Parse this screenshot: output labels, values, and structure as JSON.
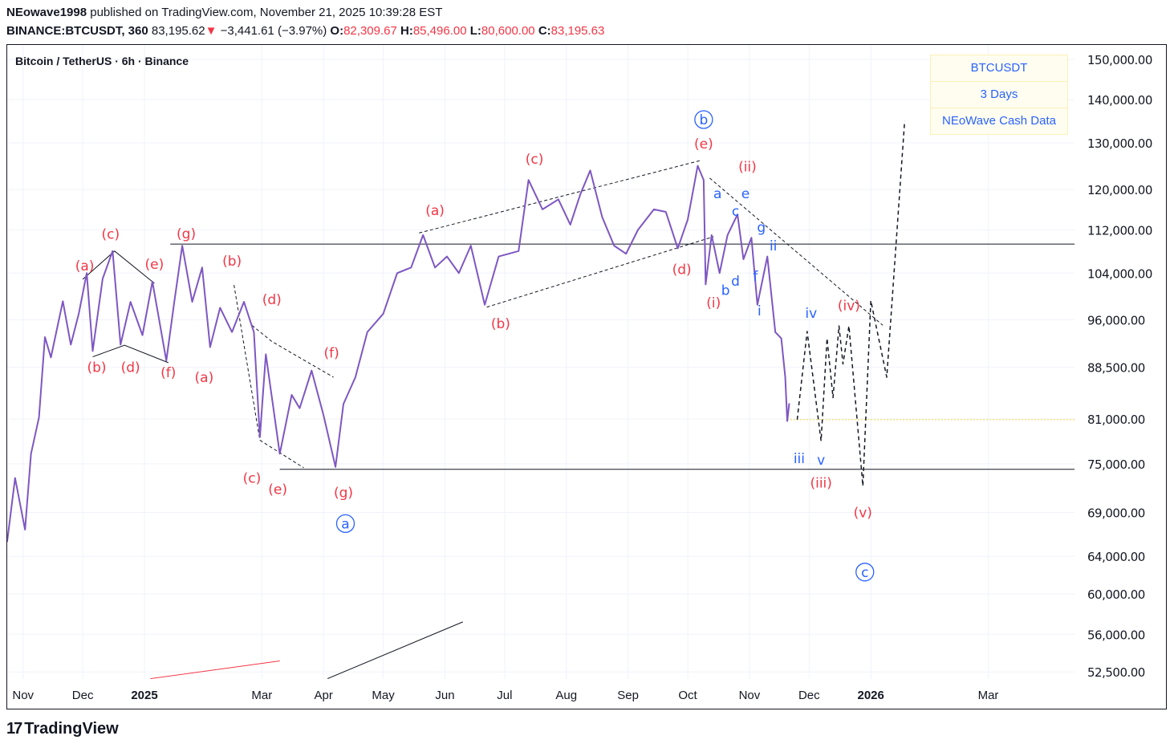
{
  "header": {
    "author": "NEowave1998",
    "published": "published on TradingView.com, November 21, 2025 10:39:28 EST",
    "symbol": "BINANCE:BTCUSDT, 360",
    "last": "83,195.62",
    "change": "−3,441.61 (−3.97%)",
    "o_label": "O:",
    "o": "82,309.67",
    "h_label": "H:",
    "h": "85,496.00",
    "l_label": "L:",
    "l": "80,600.00",
    "c_label": "C:",
    "c": "83,195.63"
  },
  "chart_title": "Bitcoin / TetherUS · 6h · Binance",
  "info_box": [
    "BTCUSDT",
    "3 Days",
    "NEoWave Cash Data"
  ],
  "footer": {
    "brand": "TradingView"
  },
  "colors": {
    "price": "#7e57c2",
    "wave_red": "#f23645",
    "wave_blue": "#2962ff",
    "down": "#f23645",
    "projection": "#131722",
    "level_dotted": "#f5d742"
  },
  "chart_data": {
    "type": "line",
    "title": "Bitcoin / TetherUS · 6h · Binance",
    "y_scale": "log",
    "ylim": [
      51000,
      152000
    ],
    "grid": true,
    "y_ticks": [
      150000,
      140000,
      130000,
      120000,
      112000,
      104000,
      96000,
      88500,
      81000,
      75000,
      69000,
      64000,
      60000,
      56000,
      52500
    ],
    "y_tick_labels": [
      "150,000.00",
      "140,000.00",
      "130,000.00",
      "120,000.00",
      "112,000.00",
      "104,000.00",
      "96,000.00",
      "88,500.00",
      "81,000.00",
      "75,000.00",
      "69,000.00",
      "64,000.00",
      "60,000.00",
      "56,000.00",
      "52,500.00"
    ],
    "x_ticks": [
      {
        "date": "2024-11-01",
        "label": "Nov",
        "bold": false
      },
      {
        "date": "2024-12-01",
        "label": "Dec",
        "bold": false
      },
      {
        "date": "2025-01-01",
        "label": "2025",
        "bold": true
      },
      {
        "date": "2025-03-01",
        "label": "Mar",
        "bold": false
      },
      {
        "date": "2025-04-01",
        "label": "Apr",
        "bold": false
      },
      {
        "date": "2025-05-01",
        "label": "May",
        "bold": false
      },
      {
        "date": "2025-06-01",
        "label": "Jun",
        "bold": false
      },
      {
        "date": "2025-07-01",
        "label": "Jul",
        "bold": false
      },
      {
        "date": "2025-08-01",
        "label": "Aug",
        "bold": false
      },
      {
        "date": "2025-09-01",
        "label": "Sep",
        "bold": false
      },
      {
        "date": "2025-10-01",
        "label": "Oct",
        "bold": false
      },
      {
        "date": "2025-11-01",
        "label": "Nov",
        "bold": false
      },
      {
        "date": "2025-12-01",
        "label": "Dec",
        "bold": false
      },
      {
        "date": "2026-01-01",
        "label": "2026",
        "bold": true
      },
      {
        "date": "2026-03-01",
        "label": "Mar",
        "bold": false
      }
    ],
    "series": [
      {
        "role": "price",
        "points": [
          [
            "2024-10-24",
            65600
          ],
          [
            "2024-10-28",
            73200
          ],
          [
            "2024-11-02",
            67000
          ],
          [
            "2024-11-05",
            76300
          ],
          [
            "2024-11-09",
            81200
          ],
          [
            "2024-11-12",
            93200
          ],
          [
            "2024-11-15",
            90000
          ],
          [
            "2024-11-21",
            99100
          ],
          [
            "2024-11-25",
            92000
          ],
          [
            "2024-11-29",
            97000
          ],
          [
            "2024-12-03",
            104000
          ],
          [
            "2024-12-06",
            91000
          ],
          [
            "2024-12-11",
            103000
          ],
          [
            "2024-12-16",
            108000
          ],
          [
            "2024-12-20",
            92000
          ],
          [
            "2024-12-25",
            99000
          ],
          [
            "2024-12-31",
            93500
          ],
          [
            "2025-01-05",
            102500
          ],
          [
            "2025-01-12",
            89500
          ],
          [
            "2025-01-16",
            99000
          ],
          [
            "2025-01-20",
            109000
          ],
          [
            "2025-01-25",
            99000
          ],
          [
            "2025-01-30",
            105000
          ],
          [
            "2025-02-03",
            91600
          ],
          [
            "2025-02-08",
            98000
          ],
          [
            "2025-02-14",
            94000
          ],
          [
            "2025-02-20",
            99000
          ],
          [
            "2025-02-25",
            94000
          ],
          [
            "2025-02-28",
            78500
          ],
          [
            "2025-03-03",
            90500
          ],
          [
            "2025-03-10",
            76300
          ],
          [
            "2025-03-16",
            84400
          ],
          [
            "2025-03-20",
            82500
          ],
          [
            "2025-03-26",
            88000
          ],
          [
            "2025-04-01",
            81500
          ],
          [
            "2025-04-07",
            74600
          ],
          [
            "2025-04-11",
            83100
          ],
          [
            "2025-04-17",
            87000
          ],
          [
            "2025-04-23",
            94000
          ],
          [
            "2025-05-01",
            97000
          ],
          [
            "2025-05-08",
            104000
          ],
          [
            "2025-05-15",
            105000
          ],
          [
            "2025-05-21",
            111000
          ],
          [
            "2025-05-27",
            105000
          ],
          [
            "2025-06-02",
            107000
          ],
          [
            "2025-06-08",
            104000
          ],
          [
            "2025-06-14",
            109000
          ],
          [
            "2025-06-21",
            98500
          ],
          [
            "2025-06-28",
            107000
          ],
          [
            "2025-07-08",
            108000
          ],
          [
            "2025-07-13",
            122000
          ],
          [
            "2025-07-20",
            116000
          ],
          [
            "2025-07-28",
            118000
          ],
          [
            "2025-08-03",
            113000
          ],
          [
            "2025-08-08",
            119000
          ],
          [
            "2025-08-13",
            124000
          ],
          [
            "2025-08-19",
            114500
          ],
          [
            "2025-08-25",
            109000
          ],
          [
            "2025-08-31",
            107500
          ],
          [
            "2025-09-06",
            112000
          ],
          [
            "2025-09-14",
            116000
          ],
          [
            "2025-09-20",
            115500
          ],
          [
            "2025-09-26",
            108500
          ],
          [
            "2025-10-01",
            114000
          ],
          [
            "2025-10-06",
            125000
          ],
          [
            "2025-10-09",
            122000
          ],
          [
            "2025-10-10",
            102000
          ],
          [
            "2025-10-13",
            111000
          ],
          [
            "2025-10-17",
            104000
          ],
          [
            "2025-10-21",
            111000
          ],
          [
            "2025-10-26",
            115000
          ],
          [
            "2025-10-29",
            106500
          ],
          [
            "2025-11-02",
            110500
          ],
          [
            "2025-11-05",
            98500
          ],
          [
            "2025-11-10",
            107000
          ],
          [
            "2025-11-14",
            94000
          ],
          [
            "2025-11-17",
            93000
          ],
          [
            "2025-11-19",
            87000
          ],
          [
            "2025-11-20",
            80700
          ],
          [
            "2025-11-21",
            83200
          ]
        ]
      },
      {
        "role": "projection",
        "points": [
          [
            "2025-11-25",
            80900
          ],
          [
            "2025-11-30",
            94100
          ],
          [
            "2025-12-07",
            78000
          ],
          [
            "2025-12-10",
            93000
          ],
          [
            "2025-12-13",
            84000
          ],
          [
            "2025-12-16",
            95000
          ],
          [
            "2025-12-18",
            89000
          ],
          [
            "2025-12-21",
            95000
          ],
          [
            "2025-12-28",
            72200
          ],
          [
            "2026-01-01",
            99200
          ],
          [
            "2026-01-09",
            87000
          ],
          [
            "2026-01-18",
            135000
          ]
        ]
      }
    ],
    "levels": [
      {
        "price": 109300,
        "from": "2025-01-14",
        "to": "2026-05-10",
        "style": "solid"
      },
      {
        "price": 74300,
        "from": "2025-03-10",
        "to": "2026-05-10",
        "style": "solid"
      },
      {
        "price": 80900,
        "from": "2025-11-20",
        "to": "2026-05-14",
        "style": "dotted"
      }
    ],
    "trendlines": [
      {
        "style": "solid",
        "color": "#131722",
        "points": [
          [
            "2024-12-01",
            102900
          ],
          [
            "2024-12-17",
            108000
          ],
          [
            "2025-01-06",
            102200
          ]
        ]
      },
      {
        "style": "solid",
        "color": "#131722",
        "points": [
          [
            "2024-12-06",
            90100
          ],
          [
            "2024-12-22",
            91900
          ],
          [
            "2025-01-13",
            89200
          ]
        ]
      },
      {
        "style": "dashed",
        "color": "#131722",
        "points": [
          [
            "2025-02-15",
            101900
          ],
          [
            "2025-02-28",
            78100
          ],
          [
            "2025-03-22",
            74500
          ]
        ]
      },
      {
        "style": "dashed",
        "color": "#131722",
        "points": [
          [
            "2025-02-24",
            95100
          ],
          [
            "2025-03-06",
            92500
          ],
          [
            "2025-04-06",
            87000
          ]
        ]
      },
      {
        "style": "dashed",
        "color": "#131722",
        "points": [
          [
            "2025-05-19",
            111400
          ],
          [
            "2025-10-08",
            126200
          ]
        ]
      },
      {
        "style": "dashed",
        "color": "#131722",
        "points": [
          [
            "2025-06-22",
            98100
          ],
          [
            "2025-10-14",
            110700
          ]
        ]
      },
      {
        "style": "dashed",
        "color": "#131722",
        "points": [
          [
            "2025-10-12",
            122400
          ],
          [
            "2026-01-07",
            95100
          ]
        ]
      },
      {
        "style": "solid",
        "color": "#f23645",
        "points": [
          [
            "2025-01-04",
            51900
          ],
          [
            "2025-03-10",
            53500
          ]
        ]
      },
      {
        "style": "solid",
        "color": "#131722",
        "points": [
          [
            "2025-04-03",
            51900
          ],
          [
            "2025-06-10",
            57200
          ]
        ]
      }
    ],
    "annotations": [
      {
        "text": "(a)",
        "date": "2024-12-02",
        "price": 105300,
        "color": "red"
      },
      {
        "text": "(c)",
        "date": "2024-12-15",
        "price": 111200,
        "color": "red"
      },
      {
        "text": "(e)",
        "date": "2025-01-06",
        "price": 105600,
        "color": "red"
      },
      {
        "text": "(b)",
        "date": "2024-12-08",
        "price": 88500,
        "color": "red"
      },
      {
        "text": "(d)",
        "date": "2024-12-25",
        "price": 88500,
        "color": "red"
      },
      {
        "text": "(f)",
        "date": "2025-01-13",
        "price": 87700,
        "color": "red"
      },
      {
        "text": "(g)",
        "date": "2025-01-22",
        "price": 111300,
        "color": "red"
      },
      {
        "text": "(b)",
        "date": "2025-02-14",
        "price": 106200,
        "color": "red"
      },
      {
        "text": "(d)",
        "date": "2025-03-06",
        "price": 99400,
        "color": "red"
      },
      {
        "text": "(a)",
        "date": "2025-01-31",
        "price": 87000,
        "color": "red"
      },
      {
        "text": "(f)",
        "date": "2025-04-05",
        "price": 90700,
        "color": "red"
      },
      {
        "text": "(c)",
        "date": "2025-02-24",
        "price": 73200,
        "color": "red"
      },
      {
        "text": "(e)",
        "date": "2025-03-09",
        "price": 71800,
        "color": "red"
      },
      {
        "text": "(g)",
        "date": "2025-04-11",
        "price": 71400,
        "color": "red"
      },
      {
        "text": "(a)",
        "date": "2025-05-27",
        "price": 115800,
        "color": "red"
      },
      {
        "text": "(c)",
        "date": "2025-07-16",
        "price": 126500,
        "color": "red"
      },
      {
        "text": "(b)",
        "date": "2025-06-29",
        "price": 95400,
        "color": "red"
      },
      {
        "text": "(d)",
        "date": "2025-09-28",
        "price": 104700,
        "color": "red"
      },
      {
        "text": "(e)",
        "date": "2025-10-09",
        "price": 129800,
        "color": "red"
      },
      {
        "text": "(ii)",
        "date": "2025-10-31",
        "price": 124800,
        "color": "red"
      },
      {
        "text": "(i)",
        "date": "2025-10-14",
        "price": 98900,
        "color": "red"
      },
      {
        "text": "(iv)",
        "date": "2025-12-21",
        "price": 98400,
        "color": "red"
      },
      {
        "text": "(iii)",
        "date": "2025-12-07",
        "price": 72600,
        "color": "red"
      },
      {
        "text": "(v)",
        "date": "2025-12-28",
        "price": 69000,
        "color": "red"
      },
      {
        "text": "b",
        "date": "2025-10-09",
        "price": 135300,
        "color": "blue",
        "circled": true
      },
      {
        "text": "a",
        "date": "2025-04-12",
        "price": 67700,
        "color": "blue",
        "circled": true
      },
      {
        "text": "c",
        "date": "2025-12-29",
        "price": 62300,
        "color": "blue",
        "circled": true
      },
      {
        "text": "a",
        "date": "2025-10-16",
        "price": 119200,
        "color": "blue"
      },
      {
        "text": "e",
        "date": "2025-10-30",
        "price": 119200,
        "color": "blue"
      },
      {
        "text": "c",
        "date": "2025-10-25",
        "price": 115700,
        "color": "blue"
      },
      {
        "text": "g",
        "date": "2025-11-07",
        "price": 112500,
        "color": "blue"
      },
      {
        "text": "ii",
        "date": "2025-11-13",
        "price": 109000,
        "color": "blue"
      },
      {
        "text": "b",
        "date": "2025-10-20",
        "price": 101000,
        "color": "blue"
      },
      {
        "text": "d",
        "date": "2025-10-25",
        "price": 102600,
        "color": "blue"
      },
      {
        "text": "f",
        "date": "2025-11-04",
        "price": 103500,
        "color": "blue"
      },
      {
        "text": "i",
        "date": "2025-11-06",
        "price": 97500,
        "color": "blue"
      },
      {
        "text": "iv",
        "date": "2025-12-02",
        "price": 97100,
        "color": "blue"
      },
      {
        "text": "iii",
        "date": "2025-11-26",
        "price": 75700,
        "color": "blue"
      },
      {
        "text": "v",
        "date": "2025-12-07",
        "price": 75500,
        "color": "blue"
      }
    ]
  }
}
